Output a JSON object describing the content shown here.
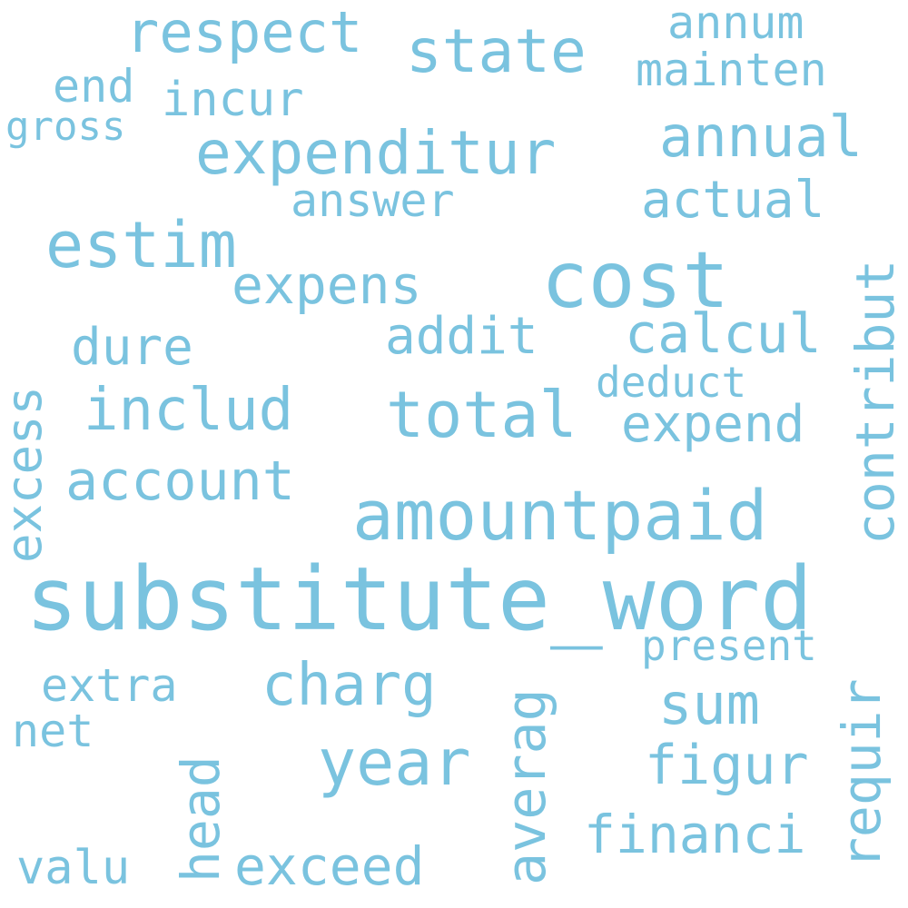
{
  "word_color": "#7ac3df",
  "background": "#ffffff",
  "words": [
    {
      "id": "substitute-word",
      "text": "substitute_word"
    },
    {
      "id": "amountpaid",
      "text": "amountpaid"
    },
    {
      "id": "cost",
      "text": "cost"
    },
    {
      "id": "year",
      "text": "year"
    },
    {
      "id": "total",
      "text": "total"
    },
    {
      "id": "estim",
      "text": "estim"
    },
    {
      "id": "expenditur",
      "text": "expenditur"
    },
    {
      "id": "includ",
      "text": "includ"
    },
    {
      "id": "state",
      "text": "state"
    },
    {
      "id": "charg",
      "text": "charg"
    },
    {
      "id": "respect",
      "text": "respect"
    },
    {
      "id": "account",
      "text": "account"
    },
    {
      "id": "annual",
      "text": "annual"
    },
    {
      "id": "expens",
      "text": "expens"
    },
    {
      "id": "calcul",
      "text": "calcul"
    },
    {
      "id": "figur",
      "text": "figur"
    },
    {
      "id": "sum",
      "text": "sum"
    },
    {
      "id": "expend",
      "text": "expend"
    },
    {
      "id": "actual",
      "text": "actual"
    },
    {
      "id": "financi",
      "text": "financi"
    },
    {
      "id": "contribut",
      "text": "contribut"
    },
    {
      "id": "averag",
      "text": "averag"
    },
    {
      "id": "dure",
      "text": "dure"
    },
    {
      "id": "addit",
      "text": "addit"
    },
    {
      "id": "exceed",
      "text": "exceed"
    },
    {
      "id": "head",
      "text": "head"
    },
    {
      "id": "requir",
      "text": "requir"
    },
    {
      "id": "excess",
      "text": "excess"
    },
    {
      "id": "mainten",
      "text": "mainten"
    },
    {
      "id": "answer",
      "text": "answer"
    },
    {
      "id": "incur",
      "text": "incur"
    },
    {
      "id": "valu",
      "text": "valu"
    },
    {
      "id": "extra",
      "text": "extra"
    },
    {
      "id": "annum",
      "text": "annum"
    },
    {
      "id": "end",
      "text": "end"
    },
    {
      "id": "net",
      "text": "net"
    },
    {
      "id": "present",
      "text": "present"
    },
    {
      "id": "deduct",
      "text": "deduct"
    },
    {
      "id": "gross",
      "text": "gross"
    }
  ]
}
